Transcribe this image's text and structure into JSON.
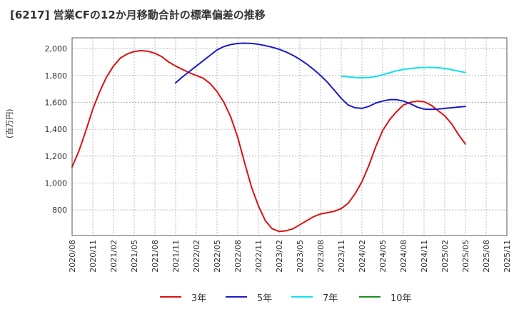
{
  "chart_data": {
    "type": "line",
    "title": "[6217]  営業CFの12か月移動合計の標準偏差の推移",
    "ylabel": "(百万円)",
    "xlabel": "",
    "ylim": [
      610,
      2080
    ],
    "yticks": [
      800,
      1000,
      1200,
      1400,
      1600,
      1800,
      2000
    ],
    "ytick_labels": [
      "800",
      "1,000",
      "1,200",
      "1,400",
      "1,600",
      "1,800",
      "2,000"
    ],
    "grid": true,
    "legend_position": "bottom",
    "x_start": "2020/08",
    "x_end": "2025/11",
    "x_tick_labels": [
      "2020/08",
      "2020/11",
      "2021/02",
      "2021/05",
      "2021/08",
      "2021/11",
      "2022/02",
      "2022/05",
      "2022/08",
      "2022/11",
      "2023/02",
      "2023/05",
      "2023/08",
      "2023/11",
      "2024/02",
      "2024/05",
      "2024/08",
      "2024/11",
      "2025/02",
      "2025/05",
      "2025/08",
      "2025/11"
    ],
    "series": [
      {
        "name": "3年",
        "color": "#dd1111",
        "x": [
          "2020/08",
          "2020/09",
          "2020/10",
          "2020/11",
          "2020/12",
          "2021/01",
          "2021/02",
          "2021/03",
          "2021/04",
          "2021/05",
          "2021/06",
          "2021/07",
          "2021/08",
          "2021/09",
          "2021/10",
          "2021/11",
          "2021/12",
          "2022/01",
          "2022/02",
          "2022/03",
          "2022/04",
          "2022/05",
          "2022/06",
          "2022/07",
          "2022/08",
          "2022/09",
          "2022/10",
          "2022/11",
          "2022/12",
          "2023/01",
          "2023/02",
          "2023/03",
          "2023/04",
          "2023/05",
          "2023/06",
          "2023/07",
          "2023/08",
          "2023/09",
          "2023/10",
          "2023/11",
          "2023/12",
          "2024/01",
          "2024/02",
          "2024/03",
          "2024/04",
          "2024/05",
          "2024/06",
          "2024/07",
          "2024/08",
          "2024/09",
          "2024/10",
          "2024/11",
          "2024/12",
          "2025/01",
          "2025/02",
          "2025/03",
          "2025/04",
          "2025/05"
        ],
        "values": [
          1120,
          1240,
          1390,
          1550,
          1680,
          1790,
          1870,
          1930,
          1960,
          1978,
          1985,
          1980,
          1965,
          1940,
          1900,
          1870,
          1845,
          1820,
          1800,
          1780,
          1740,
          1680,
          1600,
          1490,
          1340,
          1150,
          970,
          830,
          720,
          660,
          640,
          645,
          660,
          690,
          720,
          750,
          770,
          780,
          790,
          810,
          850,
          920,
          1010,
          1130,
          1270,
          1390,
          1470,
          1530,
          1580,
          1600,
          1610,
          1605,
          1580,
          1540,
          1500,
          1440,
          1360,
          1290
        ]
      },
      {
        "name": "5年",
        "color": "#1a1acc",
        "x": [
          "2021/11",
          "2021/12",
          "2022/01",
          "2022/02",
          "2022/03",
          "2022/04",
          "2022/05",
          "2022/06",
          "2022/07",
          "2022/08",
          "2022/09",
          "2022/10",
          "2022/11",
          "2022/12",
          "2023/01",
          "2023/02",
          "2023/03",
          "2023/04",
          "2023/05",
          "2023/06",
          "2023/07",
          "2023/08",
          "2023/09",
          "2023/10",
          "2023/11",
          "2023/12",
          "2024/01",
          "2024/02",
          "2024/03",
          "2024/04",
          "2024/05",
          "2024/06",
          "2024/07",
          "2024/08",
          "2024/09",
          "2024/10",
          "2024/11",
          "2024/12",
          "2025/01",
          "2025/02",
          "2025/03",
          "2025/04",
          "2025/05"
        ],
        "values": [
          1745,
          1790,
          1830,
          1870,
          1910,
          1950,
          1990,
          2015,
          2030,
          2038,
          2040,
          2038,
          2032,
          2022,
          2010,
          1995,
          1975,
          1950,
          1920,
          1885,
          1845,
          1800,
          1750,
          1690,
          1630,
          1580,
          1560,
          1555,
          1570,
          1595,
          1610,
          1620,
          1620,
          1610,
          1590,
          1565,
          1550,
          1548,
          1550,
          1555,
          1560,
          1565,
          1570
        ]
      },
      {
        "name": "7年",
        "color": "#11e0f0",
        "x": [
          "2023/11",
          "2023/12",
          "2024/01",
          "2024/02",
          "2024/03",
          "2024/04",
          "2024/05",
          "2024/06",
          "2024/07",
          "2024/08",
          "2024/09",
          "2024/10",
          "2024/11",
          "2024/12",
          "2025/01",
          "2025/02",
          "2025/03",
          "2025/04",
          "2025/05"
        ],
        "values": [
          1795,
          1790,
          1785,
          1783,
          1785,
          1792,
          1805,
          1820,
          1835,
          1845,
          1852,
          1857,
          1860,
          1860,
          1858,
          1852,
          1843,
          1832,
          1822
        ]
      },
      {
        "name": "10年",
        "color": "#1e8c1e",
        "x": [],
        "values": []
      }
    ]
  }
}
